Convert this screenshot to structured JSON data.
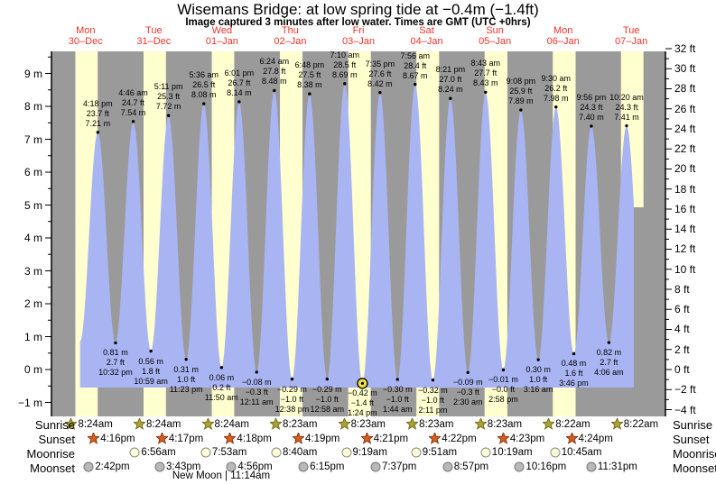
{
  "header": {
    "title": "Wisemans Bridge: at low  spring tide at −0.4m (−1.4ft)",
    "subtitle": "Image captured 3 minutes after low water. Times are GMT (UTC +0hrs)"
  },
  "chart_data": {
    "type": "area",
    "title": "Wisemans Bridge: at low spring tide at -0.4m (-1.4ft)",
    "days": [
      {
        "name": "Mon",
        "date": "30-Dec"
      },
      {
        "name": "Tue",
        "date": "31-Dec"
      },
      {
        "name": "Wed",
        "date": "01-Jan"
      },
      {
        "name": "Thu",
        "date": "02-Jan"
      },
      {
        "name": "Fri",
        "date": "03-Jan"
      },
      {
        "name": "Sat",
        "date": "04-Jan"
      },
      {
        "name": "Sun",
        "date": "05-Jan"
      },
      {
        "name": "Mon",
        "date": "06-Jan"
      },
      {
        "name": "Tue",
        "date": "07-Jan"
      }
    ],
    "y_axis_left": {
      "unit": "m",
      "ticks": [
        9,
        8,
        7,
        6,
        5,
        4,
        3,
        2,
        1,
        0,
        -1
      ]
    },
    "y_axis_right": {
      "unit": "ft",
      "ticks": [
        32,
        30,
        28,
        26,
        24,
        22,
        20,
        18,
        16,
        14,
        12,
        10,
        8,
        6,
        4,
        2,
        0,
        -2,
        -4
      ]
    },
    "extremes": [
      {
        "kind": "high",
        "day": 0,
        "time": "4:18 pm",
        "ft": "23.7 ft",
        "m": "7.21 m"
      },
      {
        "kind": "low",
        "day": 0,
        "time": "10:32 pm",
        "ft": "2.7 ft",
        "m": "0.81 m"
      },
      {
        "kind": "high",
        "day": 1,
        "time": "4:46 am",
        "ft": "24.7 ft",
        "m": "7.54 m"
      },
      {
        "kind": "low",
        "day": 1,
        "time": "10:59 am",
        "ft": "1.8 ft",
        "m": "0.56 m"
      },
      {
        "kind": "high",
        "day": 1,
        "time": "5:11 pm",
        "ft": "25.3 ft",
        "m": "7.72 m"
      },
      {
        "kind": "low",
        "day": 1,
        "time": "11:23 pm",
        "ft": "1.0 ft",
        "m": "0.31 m"
      },
      {
        "kind": "high",
        "day": 2,
        "time": "5:36 am",
        "ft": "26.5 ft",
        "m": "8.08 m"
      },
      {
        "kind": "low",
        "day": 2,
        "time": "11:50 am",
        "ft": "0.2 ft",
        "m": "0.06 m"
      },
      {
        "kind": "high",
        "day": 2,
        "time": "6:01 pm",
        "ft": "26.7 ft",
        "m": "8.14 m"
      },
      {
        "kind": "low",
        "day": 3,
        "time": "12:11 am",
        "ft": "-0.3 ft",
        "m": "-0.08 m"
      },
      {
        "kind": "high",
        "day": 3,
        "time": "6:24 am",
        "ft": "27.8 ft",
        "m": "8.48 m"
      },
      {
        "kind": "low",
        "day": 3,
        "time": "12:38 pm",
        "ft": "-1.0 ft",
        "m": "-0.29 m"
      },
      {
        "kind": "high",
        "day": 3,
        "time": "6:48 pm",
        "ft": "27.5 ft",
        "m": "8.38 m"
      },
      {
        "kind": "low",
        "day": 4,
        "time": "12:58 am",
        "ft": "-1.0 ft",
        "m": "-0.29 m"
      },
      {
        "kind": "high",
        "day": 4,
        "time": "7:10 am",
        "ft": "28.5 ft",
        "m": "8.69 m"
      },
      {
        "kind": "low",
        "day": 4,
        "time": "1:24 pm",
        "ft": "-1.4 ft",
        "m": "-0.42 m",
        "marker": true
      },
      {
        "kind": "high",
        "day": 4,
        "time": "7:35 pm",
        "ft": "27.6 ft",
        "m": "8.42 m"
      },
      {
        "kind": "low",
        "day": 5,
        "time": "1:44 am",
        "ft": "-1.0 ft",
        "m": "-0.30 m"
      },
      {
        "kind": "high",
        "day": 5,
        "time": "7:56 am",
        "ft": "28.4 ft",
        "m": "8.67 m"
      },
      {
        "kind": "low",
        "day": 5,
        "time": "2:11 pm",
        "ft": "-1.0 ft",
        "m": "-0.32 m"
      },
      {
        "kind": "high",
        "day": 5,
        "time": "8:21 pm",
        "ft": "27.0 ft",
        "m": "8.24 m"
      },
      {
        "kind": "low",
        "day": 6,
        "time": "2:30 am",
        "ft": "-0.3 ft",
        "m": "-0.09 m"
      },
      {
        "kind": "high",
        "day": 6,
        "time": "8:43 am",
        "ft": "27.7 ft",
        "m": "8.43 m"
      },
      {
        "kind": "low",
        "day": 6,
        "time": "2:58 pm",
        "ft": "-0.0 ft",
        "m": "-0.01 m"
      },
      {
        "kind": "high",
        "day": 6,
        "time": "9:08 pm",
        "ft": "25.9 ft",
        "m": "7.89 m"
      },
      {
        "kind": "low",
        "day": 7,
        "time": "3:16 am",
        "ft": "1.0 ft",
        "m": "0.30 m"
      },
      {
        "kind": "high",
        "day": 7,
        "time": "9:30 am",
        "ft": "26.2 ft",
        "m": "7.98 m"
      },
      {
        "kind": "low",
        "day": 7,
        "time": "3:46 pm",
        "ft": "1.6 ft",
        "m": "0.48 m"
      },
      {
        "kind": "high",
        "day": 7,
        "time": "9:56 pm",
        "ft": "24.3 ft",
        "m": "7.40 m"
      },
      {
        "kind": "low",
        "day": 8,
        "time": "4:06 am",
        "ft": "2.7 ft",
        "m": "0.82 m"
      },
      {
        "kind": "high",
        "day": 8,
        "time": "10:20 am",
        "ft": "24.3 ft",
        "m": "7.41 m"
      }
    ],
    "sun_moon": {
      "rows": [
        {
          "label": "Sunrise",
          "icon": "sunrise-star",
          "entries": [
            {
              "day": 0,
              "time": "8:24am"
            },
            {
              "day": 1,
              "time": "8:24am"
            },
            {
              "day": 2,
              "time": "8:24am"
            },
            {
              "day": 3,
              "time": "8:23am"
            },
            {
              "day": 4,
              "time": "8:23am"
            },
            {
              "day": 5,
              "time": "8:23am"
            },
            {
              "day": 6,
              "time": "8:23am"
            },
            {
              "day": 7,
              "time": "8:22am"
            },
            {
              "day": 8,
              "time": "8:22am"
            }
          ]
        },
        {
          "label": "Sunset",
          "icon": "sunset-star",
          "entries": [
            {
              "day": 0,
              "time": "4:16pm"
            },
            {
              "day": 1,
              "time": "4:17pm"
            },
            {
              "day": 2,
              "time": "4:18pm"
            },
            {
              "day": 3,
              "time": "4:19pm"
            },
            {
              "day": 4,
              "time": "4:21pm"
            },
            {
              "day": 5,
              "time": "4:22pm"
            },
            {
              "day": 6,
              "time": "4:23pm"
            },
            {
              "day": 7,
              "time": "4:24pm"
            }
          ]
        },
        {
          "label": "Moonrise",
          "icon": "moonrise-circle",
          "entries": [
            {
              "day": 1,
              "time": "6:56am"
            },
            {
              "day": 2,
              "time": "7:53am"
            },
            {
              "day": 3,
              "time": "8:40am"
            },
            {
              "day": 4,
              "time": "9:19am"
            },
            {
              "day": 5,
              "time": "9:51am"
            },
            {
              "day": 6,
              "time": "10:19am"
            },
            {
              "day": 7,
              "time": "10:45am"
            }
          ]
        },
        {
          "label": "Moonset",
          "icon": "moonset-circle",
          "entries": [
            {
              "day": 0,
              "time": "2:42pm"
            },
            {
              "day": 1,
              "time": "3:43pm"
            },
            {
              "day": 2,
              "time": "4:56pm"
            },
            {
              "day": 3,
              "time": "6:15pm"
            },
            {
              "day": 4,
              "time": "7:37pm"
            },
            {
              "day": 5,
              "time": "8:57pm"
            },
            {
              "day": 6,
              "time": "10:16pm"
            },
            {
              "day": 7,
              "time": "11:31pm"
            }
          ]
        }
      ],
      "new_moon": "New Moon | 11:14am"
    },
    "colors": {
      "night_band": "#9a9a9a",
      "day_band": "#ffffcf",
      "tide_fill": "#a9b4f2",
      "day_label": "#f03228",
      "marker_fill": "#f0e13a",
      "sunrise_star": "#aaa433",
      "sunrise_star_stroke": "#756f1f",
      "sunset_star": "#d4601f",
      "sunset_star_stroke": "#93350f",
      "moonrise_fill": "#ffffd8",
      "moonrise_stroke": "#8a8a8a",
      "moonset_fill": "#b9b9b9",
      "moonset_stroke": "#777777"
    }
  }
}
